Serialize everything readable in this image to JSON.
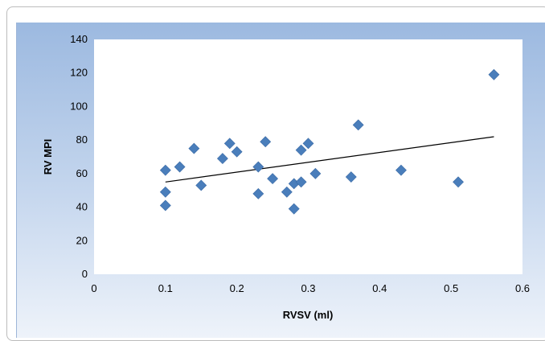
{
  "chart_data": {
    "type": "scatter",
    "xlabel": "RVSV (ml)",
    "ylabel": "RV MPI",
    "xlim": [
      0,
      0.6
    ],
    "ylim": [
      0,
      140
    ],
    "x_ticks": [
      "0",
      "0.1",
      "0.2",
      "0.3",
      "0.4",
      "0.5",
      "0.6"
    ],
    "y_ticks": [
      "0",
      "20",
      "40",
      "60",
      "80",
      "100",
      "120",
      "140"
    ],
    "grid": false,
    "legend": "none",
    "marker_color": "#4a7ebb",
    "trendline": {
      "type": "linear",
      "x_start": 0.1,
      "y_start": 55,
      "x_end": 0.56,
      "y_end": 82
    },
    "series": [
      {
        "x": [
          0.1,
          0.1,
          0.1,
          0.12,
          0.14,
          0.15,
          0.18,
          0.19,
          0.2,
          0.23,
          0.23,
          0.24,
          0.25,
          0.27,
          0.28,
          0.28,
          0.29,
          0.29,
          0.3,
          0.31,
          0.36,
          0.37,
          0.43,
          0.51,
          0.56
        ],
        "y": [
          62,
          49,
          41,
          64,
          75,
          53,
          69,
          78,
          73,
          64,
          48,
          79,
          57,
          49,
          54,
          39,
          74,
          55,
          78,
          60,
          58,
          89,
          62,
          55,
          119
        ]
      }
    ]
  }
}
